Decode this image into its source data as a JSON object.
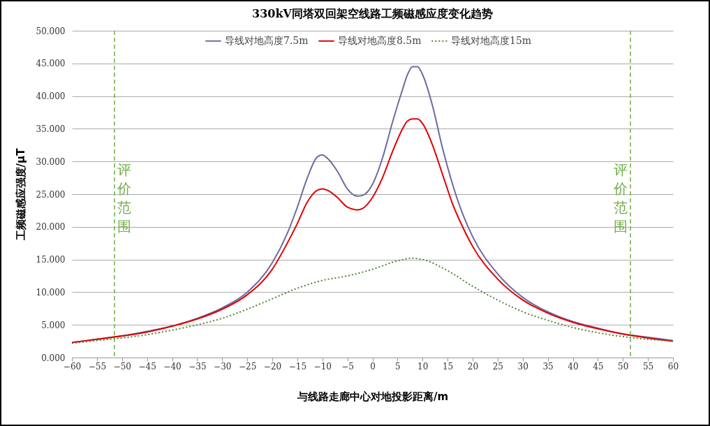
{
  "chart_data": {
    "type": "line",
    "title": "330kV同塔双回架空线路工频磁感应度变化趋势",
    "xlabel": "与线路走廊中心对地投影距离/m",
    "ylabel": "工频磁感应强度/μT",
    "xlim": [
      -60,
      60
    ],
    "xticks": [
      -60,
      -55,
      -50,
      -45,
      -40,
      -35,
      -30,
      -25,
      -20,
      -15,
      -10,
      -5,
      0,
      5,
      10,
      15,
      20,
      25,
      30,
      35,
      40,
      45,
      50,
      55,
      60
    ],
    "ylim": [
      0,
      50
    ],
    "yticks": [
      {
        "value": 0,
        "label": "0.000"
      },
      {
        "value": 5,
        "label": "5.000"
      },
      {
        "value": 10,
        "label": "10.000"
      },
      {
        "value": 15,
        "label": "15.000"
      },
      {
        "value": 20,
        "label": "20.000"
      },
      {
        "value": 25,
        "label": "25.000"
      },
      {
        "value": 30,
        "label": "30.000"
      },
      {
        "value": 35,
        "label": "35.000"
      },
      {
        "value": 40,
        "label": "40.000"
      },
      {
        "value": 45,
        "label": "45.000"
      },
      {
        "value": 50,
        "label": "50.000"
      }
    ],
    "grid": "y",
    "legend": "top",
    "marker": "none",
    "series": [
      {
        "name": "导线对地高度7.5m",
        "color": "#6b6ba3",
        "line_style": "solid",
        "x": [
          -60,
          -55,
          -50,
          -45,
          -40,
          -35,
          -30,
          -25,
          -20,
          -17,
          -15,
          -13,
          -11,
          -10,
          -9,
          -7,
          -5,
          -3,
          -2,
          0,
          2,
          4,
          6,
          7,
          8,
          9,
          10,
          12,
          14,
          16,
          18,
          20,
          25,
          30,
          35,
          40,
          45,
          50,
          55,
          60
        ],
        "values": [
          2.3,
          2.8,
          3.3,
          4.0,
          4.8,
          6.0,
          7.6,
          10.0,
          14.5,
          19.0,
          23.0,
          27.5,
          30.7,
          31.0,
          30.5,
          28.5,
          25.8,
          24.7,
          24.8,
          26.5,
          30.5,
          36.0,
          41.0,
          43.3,
          44.5,
          44.5,
          43.3,
          38.5,
          32.0,
          26.5,
          22.0,
          18.5,
          12.8,
          9.2,
          7.0,
          5.5,
          4.5,
          3.6,
          3.1,
          2.6
        ]
      },
      {
        "name": "导线对地高度8.5m",
        "color": "#e00000",
        "line_style": "solid",
        "x": [
          -60,
          -55,
          -50,
          -45,
          -40,
          -35,
          -30,
          -25,
          -20,
          -17,
          -15,
          -13,
          -11,
          -10,
          -9,
          -7,
          -5,
          -3,
          -2,
          0,
          2,
          4,
          6,
          7,
          8,
          9,
          10,
          12,
          14,
          16,
          18,
          20,
          25,
          30,
          35,
          40,
          45,
          50,
          55,
          60
        ],
        "values": [
          2.3,
          2.8,
          3.3,
          3.9,
          4.8,
          5.9,
          7.4,
          9.6,
          13.5,
          17.5,
          20.5,
          23.8,
          25.6,
          25.8,
          25.6,
          24.5,
          23.0,
          22.6,
          22.8,
          24.5,
          27.5,
          31.5,
          35.0,
          36.2,
          36.5,
          36.5,
          35.8,
          32.5,
          28.0,
          23.5,
          20.0,
          17.0,
          12.0,
          8.8,
          6.8,
          5.4,
          4.4,
          3.6,
          3.0,
          2.5
        ]
      },
      {
        "name": "导线对地高度15m",
        "color": "#548235",
        "line_style": "dotted",
        "x": [
          -60,
          -55,
          -50,
          -45,
          -40,
          -35,
          -30,
          -25,
          -20,
          -15,
          -10,
          -5,
          0,
          5,
          8,
          10,
          15,
          20,
          25,
          30,
          35,
          40,
          45,
          50,
          55,
          60
        ],
        "values": [
          2.2,
          2.6,
          3.0,
          3.5,
          4.2,
          5.0,
          6.0,
          7.4,
          9.0,
          10.6,
          11.8,
          12.5,
          13.5,
          14.8,
          15.2,
          15.0,
          13.3,
          10.9,
          8.8,
          7.0,
          5.7,
          4.6,
          3.8,
          3.2,
          2.8,
          2.5
        ]
      }
    ],
    "ref_lines": [
      {
        "axis": "x",
        "value": -51.5,
        "label": "评价范围",
        "color": "#70ad47",
        "line_style": "dashed"
      },
      {
        "axis": "x",
        "value": 51.5,
        "label": "评价范围",
        "color": "#70ad47",
        "line_style": "dashed"
      }
    ]
  }
}
